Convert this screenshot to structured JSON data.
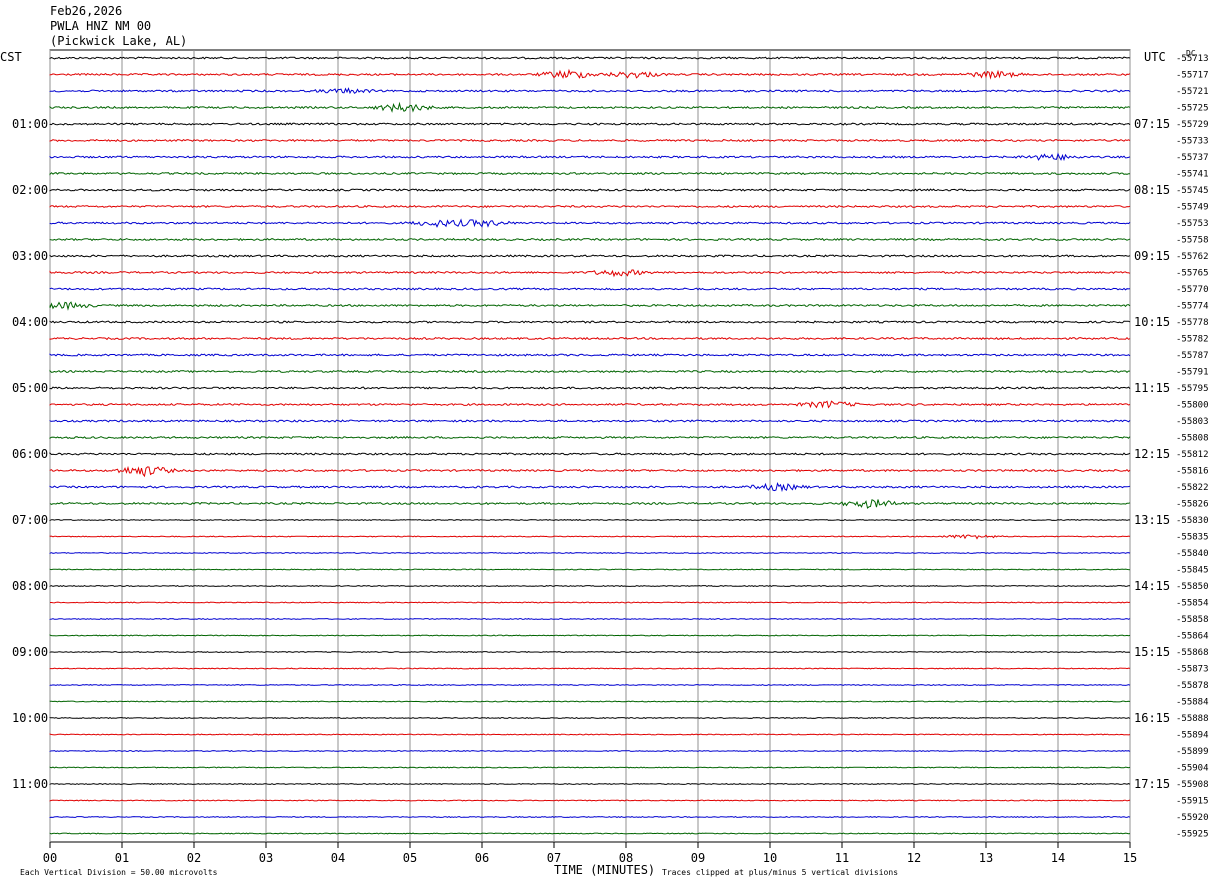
{
  "header": {
    "date": "Feb26,2026",
    "station": "PWLA HNZ NM 00",
    "location": "(Pickwick Lake, AL)"
  },
  "left_timezone": "CST",
  "right_timezone": "UTC",
  "dc_label": "DC",
  "footer": {
    "scale_text": "Each Vertical Division =   50.00 microvolts",
    "xlabel": "TIME (MINUTES)",
    "clip_text": "Traces clipped at plus/minus 5 vertical divisions"
  },
  "chart_data": {
    "type": "line",
    "xlabel": "TIME (MINUTES)",
    "xlim": [
      0,
      15
    ],
    "x_ticks": [
      "00",
      "01",
      "02",
      "03",
      "04",
      "05",
      "06",
      "07",
      "08",
      "09",
      "10",
      "11",
      "12",
      "13",
      "14",
      "15"
    ],
    "grid": true,
    "trace_colors": [
      "#000000",
      "#e00000",
      "#0000d0",
      "#006400"
    ],
    "num_traces": 48,
    "left_hour_labels": [
      "01:00",
      "02:00",
      "03:00",
      "04:00",
      "05:00",
      "06:00",
      "07:00",
      "08:00",
      "09:00",
      "10:00",
      "11:00"
    ],
    "right_hour_labels": [
      "07:15",
      "08:15",
      "09:15",
      "10:15",
      "11:15",
      "12:15",
      "13:15",
      "14:15",
      "15:15",
      "16:15",
      "17:15"
    ],
    "dc_offsets": [
      "-55713",
      "-55717",
      "-55721",
      "-55725",
      "-55729",
      "-55733",
      "-55737",
      "-55741",
      "-55745",
      "-55749",
      "-55753",
      "-55758",
      "-55762",
      "-55765",
      "-55770",
      "-55774",
      "-55778",
      "-55782",
      "-55787",
      "-55791",
      "-55795",
      "-55800",
      "-55803",
      "-55808",
      "-55812",
      "-55816",
      "-55822",
      "-55826",
      "-55830",
      "-55835",
      "-55840",
      "-55845",
      "-55850",
      "-55854",
      "-55858",
      "-55864",
      "-55868",
      "-55873",
      "-55878",
      "-55884",
      "-55888",
      "-55894",
      "-55899",
      "-55904",
      "-55908",
      "-55915",
      "-55920",
      "-55925"
    ],
    "events": [
      {
        "trace": 1,
        "minute": 7.2,
        "amplitude": 4
      },
      {
        "trace": 1,
        "minute": 8.1,
        "amplitude": 3
      },
      {
        "trace": 1,
        "minute": 13.1,
        "amplitude": 3
      },
      {
        "trace": 2,
        "minute": 4.1,
        "amplitude": 2
      },
      {
        "trace": 3,
        "minute": 4.9,
        "amplitude": 4
      },
      {
        "trace": 6,
        "minute": 13.9,
        "amplitude": 3
      },
      {
        "trace": 10,
        "minute": 5.4,
        "amplitude": 3
      },
      {
        "trace": 10,
        "minute": 6.0,
        "amplitude": 3
      },
      {
        "trace": 13,
        "minute": 7.9,
        "amplitude": 3
      },
      {
        "trace": 15,
        "minute": 0.2,
        "amplitude": 3
      },
      {
        "trace": 21,
        "minute": 10.8,
        "amplitude": 3
      },
      {
        "trace": 25,
        "minute": 1.3,
        "amplitude": 5
      },
      {
        "trace": 26,
        "minute": 10.1,
        "amplitude": 3
      },
      {
        "trace": 27,
        "minute": 11.4,
        "amplitude": 4
      },
      {
        "trace": 29,
        "minute": 12.8,
        "amplitude": 2
      }
    ]
  }
}
